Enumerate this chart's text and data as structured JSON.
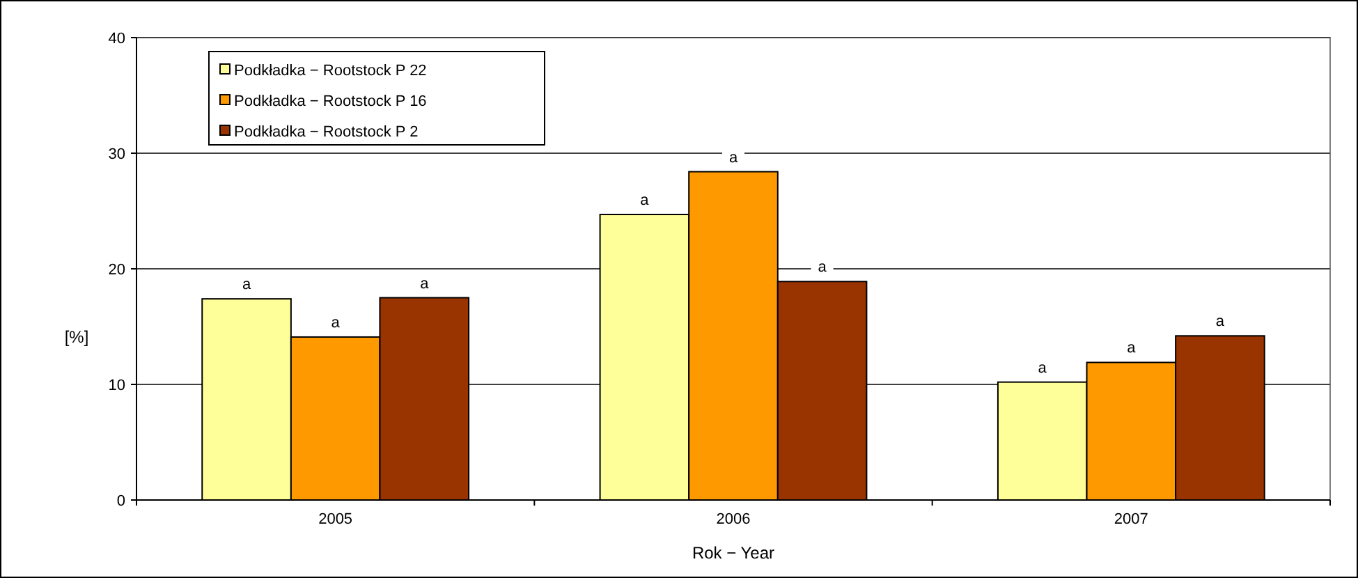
{
  "chart_data": {
    "type": "bar",
    "xlabel": "Rok − Year",
    "ylabel": "[%]",
    "categories": [
      "2005",
      "2006",
      "2007"
    ],
    "series": [
      {
        "name": "Podkładka − Rootstock P 22",
        "color": "#ffff99",
        "values": [
          17.4,
          24.7,
          10.2
        ],
        "value_labels": [
          "a",
          "a",
          "a"
        ]
      },
      {
        "name": "Podkładka − Rootstock P 16",
        "color": "#ff9900",
        "values": [
          14.1,
          28.4,
          11.9
        ],
        "value_labels": [
          "a",
          "a",
          "a"
        ]
      },
      {
        "name": "Podkładka − Rootstock P 2",
        "color": "#993300",
        "values": [
          17.5,
          18.9,
          14.2
        ],
        "value_labels": [
          "a",
          "a",
          "a"
        ]
      }
    ],
    "ylim": [
      0,
      40
    ],
    "yticks": [
      0,
      10,
      20,
      30,
      40
    ],
    "grid": "y",
    "legend": "top left"
  }
}
